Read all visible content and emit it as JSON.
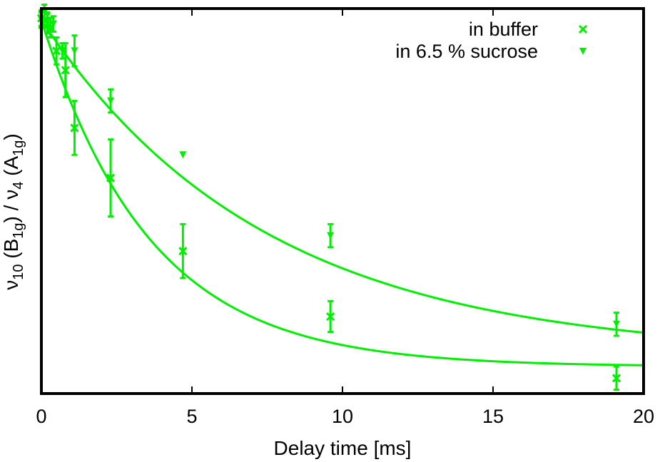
{
  "chart_data": {
    "type": "scatter",
    "xlabel": "Delay time  [ms]",
    "ylabel": {
      "parts": [
        {
          "text": "ν",
          "sub": false
        },
        {
          "text": "10",
          "sub": true
        },
        {
          "text": " (B",
          "sub": false
        },
        {
          "text": "1g",
          "sub": true
        },
        {
          "text": ") / ν",
          "sub": false
        },
        {
          "text": "4",
          "sub": true
        },
        {
          "text": " (A",
          "sub": false
        },
        {
          "text": "1g",
          "sub": true
        },
        {
          "text": ")",
          "sub": false
        }
      ]
    },
    "xlim": [
      0,
      20
    ],
    "ylim": [
      0,
      1
    ],
    "x_ticks": [
      0,
      5,
      10,
      15,
      20
    ],
    "x_tick_labels": [
      "0",
      "5",
      "10",
      "15",
      "20"
    ],
    "y_ticks": [],
    "grid": false,
    "legend_position": "top-right",
    "color": "#00ee00",
    "series": [
      {
        "name": "in buffer",
        "marker": "x",
        "x": [
          0.0,
          0.2,
          0.3,
          0.5,
          0.8,
          1.1,
          2.3,
          4.7,
          9.6,
          19.1
        ],
        "y": [
          0.975,
          0.96,
          0.95,
          0.89,
          0.84,
          0.69,
          0.56,
          0.37,
          0.2,
          0.04
        ],
        "err": [
          0.02,
          0.025,
          0.025,
          0.035,
          0.07,
          0.07,
          0.1,
          0.07,
          0.04,
          0.03
        ],
        "fit": {
          "type": "exponential",
          "a": 0.07,
          "b": 0.9,
          "tau": 3.6
        }
      },
      {
        "name": "in 6.5 % sucrose",
        "marker": "triangle-down",
        "x": [
          0.0,
          0.1,
          0.2,
          0.4,
          0.7,
          1.1,
          2.3,
          4.7,
          9.6,
          19.1
        ],
        "y": [
          0.97,
          0.99,
          0.97,
          0.96,
          0.89,
          0.89,
          0.76,
          0.62,
          0.41,
          0.18
        ],
        "err": [
          0.02,
          0.02,
          0.02,
          0.02,
          0.02,
          0.04,
          0.03,
          0.0,
          0.03,
          0.03
        ],
        "fit": {
          "type": "exponential",
          "a": 0.1,
          "b": 0.87,
          "tau": 7.4
        }
      }
    ]
  }
}
